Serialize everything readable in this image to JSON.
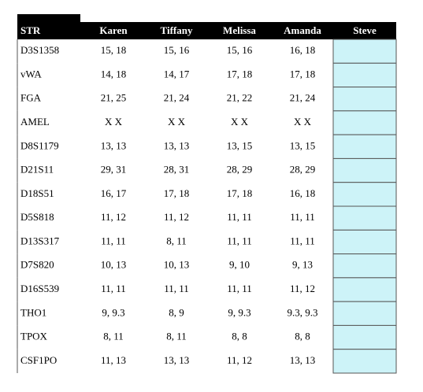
{
  "table": {
    "header": [
      "STR",
      "Karen",
      "Tiffany",
      "Melissa",
      "Amanda",
      "Steve"
    ],
    "rows": [
      [
        "D3S1358",
        "15, 18",
        "15, 16",
        "15, 16",
        "16, 18"
      ],
      [
        "vWA",
        "14, 18",
        "14, 17",
        "17, 18",
        "17, 18"
      ],
      [
        "FGA",
        "21, 25",
        "21, 24",
        "21, 22",
        "21, 24"
      ],
      [
        "AMEL",
        "X X",
        "X X",
        "X X",
        "X X"
      ],
      [
        "D8S1179",
        "13, 13",
        "13, 13",
        "13, 15",
        "13, 15"
      ],
      [
        "D21S11",
        "29, 31",
        "28, 31",
        "28, 29",
        "28, 29"
      ],
      [
        "D18S51",
        "16, 17",
        "17, 18",
        "17, 18",
        "16, 18"
      ],
      [
        "D5S818",
        "11, 12",
        "11, 12",
        "11, 11",
        "11, 11"
      ],
      [
        "D13S317",
        "11, 11",
        "8, 11",
        "11, 11",
        "11, 11"
      ],
      [
        "D7S820",
        "10, 13",
        "10, 13",
        "9, 10",
        "9, 13"
      ],
      [
        "D16S539",
        "11, 11",
        "11, 11",
        "11, 11",
        "11, 12"
      ],
      [
        "THO1",
        "9, 9.3",
        "8, 9",
        "9, 9.3",
        "9.3, 9.3"
      ],
      [
        "TPOX",
        "8, 11",
        "8, 11",
        "8, 8",
        "8, 8"
      ],
      [
        "CSF1PO",
        "11, 13",
        "13, 13",
        "11, 12",
        "13, 13"
      ]
    ]
  }
}
